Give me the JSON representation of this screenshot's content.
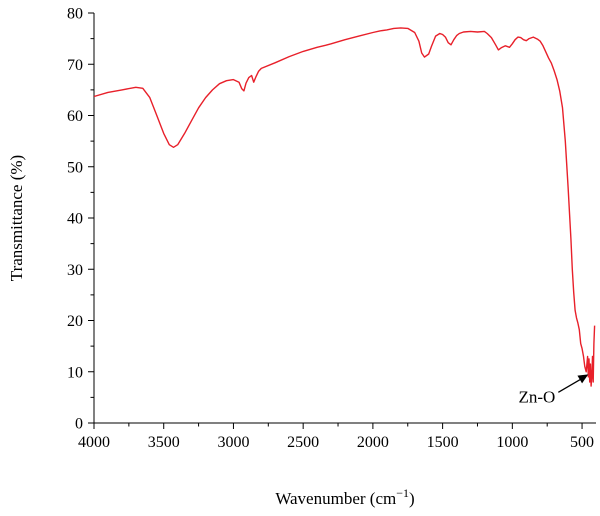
{
  "chart_data": {
    "type": "line",
    "xlabel": "Wavenumber (cm",
    "xlabel_sup": "−1",
    "xlabel_end": ")",
    "ylabel": "Transmittance (%)",
    "xlim": [
      4000,
      400
    ],
    "ylim": [
      0,
      80
    ],
    "x_reversed": true,
    "grid": false,
    "legend": "none",
    "x_ticks": [
      4000,
      3500,
      3000,
      2500,
      2000,
      1500,
      1000,
      500
    ],
    "y_ticks": [
      0,
      10,
      20,
      30,
      40,
      50,
      60,
      70,
      80
    ],
    "series_color": "#e8202a",
    "series": [
      {
        "x": [
          4000,
          3900,
          3800,
          3700,
          3650,
          3600,
          3550,
          3500,
          3460,
          3430,
          3400,
          3350,
          3300,
          3250,
          3200,
          3150,
          3100,
          3050,
          3000,
          2960,
          2940,
          2925,
          2910,
          2890,
          2870,
          2855,
          2840,
          2820,
          2800,
          2700,
          2600,
          2500,
          2400,
          2340,
          2300,
          2200,
          2100,
          2000,
          1950,
          1900,
          1850,
          1800,
          1750,
          1700,
          1670,
          1650,
          1630,
          1600,
          1580,
          1550,
          1520,
          1500,
          1480,
          1460,
          1440,
          1420,
          1400,
          1380,
          1350,
          1300,
          1250,
          1200,
          1180,
          1150,
          1120,
          1100,
          1080,
          1050,
          1020,
          1000,
          980,
          960,
          940,
          920,
          900,
          880,
          850,
          820,
          800,
          780,
          760,
          740,
          720,
          700,
          680,
          660,
          640,
          620,
          600,
          580,
          570,
          560,
          550,
          540,
          530,
          520,
          510,
          500,
          490,
          480,
          470,
          460,
          455,
          450,
          445,
          440,
          435,
          430,
          425,
          420,
          415,
          410
        ],
        "values": [
          63.7,
          64.5,
          65.0,
          65.5,
          65.3,
          63.5,
          60.0,
          56.5,
          54.3,
          53.8,
          54.3,
          56.5,
          59.0,
          61.5,
          63.5,
          65.0,
          66.2,
          66.8,
          67.0,
          66.5,
          65.2,
          64.8,
          66.3,
          67.4,
          67.8,
          66.5,
          67.5,
          68.6,
          69.2,
          70.3,
          71.5,
          72.5,
          73.3,
          73.7,
          74.0,
          74.8,
          75.5,
          76.2,
          76.5,
          76.7,
          77.0,
          77.1,
          77.0,
          76.2,
          74.5,
          72.2,
          71.4,
          72.0,
          73.5,
          75.5,
          76.0,
          75.8,
          75.3,
          74.2,
          73.8,
          74.8,
          75.6,
          76.0,
          76.3,
          76.4,
          76.3,
          76.4,
          76.0,
          75.2,
          73.8,
          72.8,
          73.2,
          73.6,
          73.3,
          74.0,
          74.8,
          75.3,
          75.2,
          74.8,
          74.6,
          75.0,
          75.3,
          74.9,
          74.5,
          73.6,
          72.4,
          71.2,
          70.2,
          68.7,
          67.0,
          64.8,
          61.5,
          55.0,
          46.0,
          36.0,
          30.0,
          25.5,
          22.0,
          20.5,
          19.5,
          18.2,
          15.5,
          14.5,
          13.0,
          11.0,
          10.0,
          13.0,
          9.0,
          12.5,
          8.0,
          11.5,
          7.2,
          9.0,
          13.0,
          8.0,
          15.5,
          19.0
        ]
      }
    ],
    "annotation": {
      "text": "Zn-O",
      "x": 455,
      "y": 9.5
    }
  }
}
